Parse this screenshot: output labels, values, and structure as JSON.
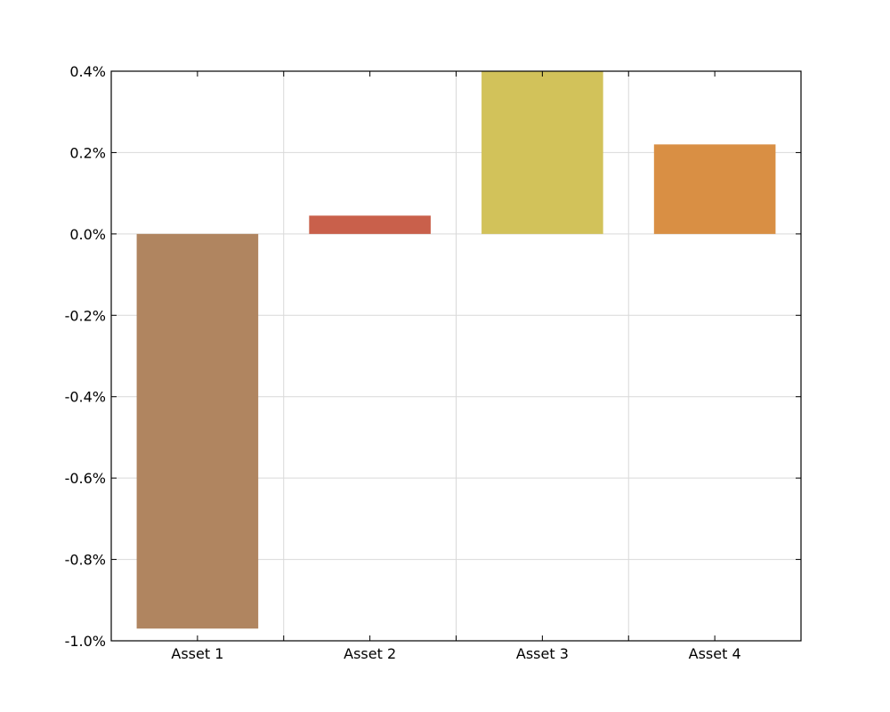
{
  "chart_data": {
    "type": "bar",
    "title": "",
    "xlabel": "",
    "ylabel": "",
    "categories": [
      "Asset 1",
      "Asset 2",
      "Asset 3",
      "Asset 4"
    ],
    "values": [
      -0.97,
      0.045,
      0.4,
      0.22
    ],
    "unit": "%",
    "ylim": [
      -1.0,
      0.4
    ],
    "yticks": [
      -1.0,
      -0.8,
      -0.6,
      -0.4,
      -0.2,
      0.0,
      0.2,
      0.4
    ],
    "ytick_labels": [
      "-1.0%",
      "-0.8%",
      "-0.6%",
      "-0.4%",
      "-0.2%",
      "0.0%",
      "0.2%",
      "0.4%"
    ],
    "colors": [
      "#b08560",
      "#c9604b",
      "#d2c25a",
      "#d98f44"
    ],
    "grid": true,
    "legend": false
  }
}
